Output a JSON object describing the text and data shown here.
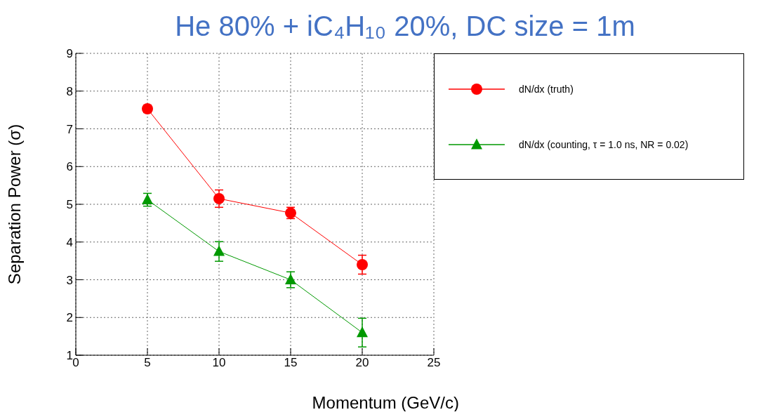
{
  "chart_data": {
    "type": "line",
    "title": "He 80% + iC₄H₁₀ 20%, DC size = 1m",
    "xlabel": "Momentum (GeV/c)",
    "ylabel": "Separation Power (σ)",
    "x": [
      5,
      10,
      15,
      20
    ],
    "series": [
      {
        "name": "dN/dx (truth)",
        "color": "#ff0000",
        "marker": "circle",
        "values": [
          7.53,
          5.15,
          4.77,
          3.4
        ],
        "errors": [
          0.1,
          0.23,
          0.15,
          0.25
        ]
      },
      {
        "name": "dN/dx (counting, τ = 1.0 ns, NR = 0.02)",
        "color": "#009900",
        "marker": "triangle",
        "values": [
          5.12,
          3.75,
          3.0,
          1.6
        ],
        "errors": [
          0.17,
          0.26,
          0.21,
          0.38
        ]
      }
    ],
    "xlim": [
      0,
      25
    ],
    "xticks": [
      0,
      5,
      10,
      15,
      20,
      25
    ],
    "ylim": [
      1,
      9
    ],
    "yticks": [
      1,
      2,
      3,
      4,
      5,
      6,
      7,
      8,
      9
    ],
    "grid": true,
    "legend": "top right",
    "line_style": "solid"
  }
}
